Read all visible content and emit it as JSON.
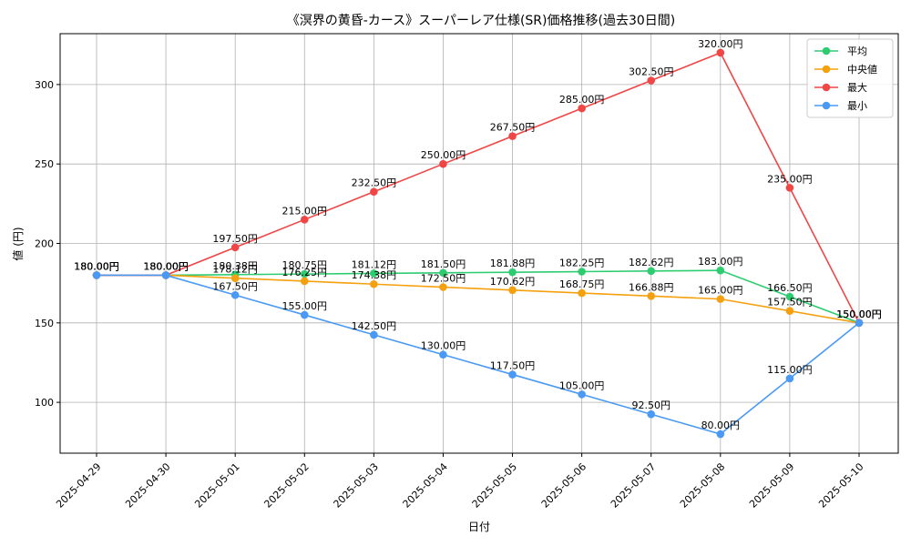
{
  "chart_data": {
    "type": "line",
    "title": "《溟界の黄昏-カース》スーパーレア仕様(SR)価格推移(過去30日間)",
    "xlabel": "日付",
    "ylabel": "値 (円)",
    "x": [
      "2025-04-29",
      "2025-04-30",
      "2025-05-01",
      "2025-05-02",
      "2025-05-03",
      "2025-05-04",
      "2025-05-05",
      "2025-05-06",
      "2025-05-07",
      "2025-05-08",
      "2025-05-09",
      "2025-05-10"
    ],
    "ylim": [
      68,
      332
    ],
    "yticks": [
      100,
      150,
      200,
      250,
      300
    ],
    "grid": true,
    "legend_position": "top-right",
    "series": [
      {
        "name": "平均",
        "color": "#2ecc71",
        "values": [
          180.0,
          180.0,
          180.38,
          180.75,
          181.12,
          181.5,
          181.88,
          182.25,
          182.62,
          183.0,
          166.5,
          150.0
        ],
        "labels": [
          "180.00円",
          "180.00円",
          "180.38円",
          "180.75円",
          "181.12円",
          "181.50円",
          "181.88円",
          "182.25円",
          "182.62円",
          "183.00円",
          "166.50円",
          "150.00円"
        ]
      },
      {
        "name": "中央値",
        "color": "#f5a00f",
        "values": [
          180.0,
          180.0,
          178.12,
          176.25,
          174.38,
          172.5,
          170.62,
          168.75,
          166.88,
          165.0,
          157.5,
          150.0
        ],
        "labels": [
          "180.00円",
          "180.00円",
          "178.12円",
          "176.25円",
          "174.38円",
          "172.50円",
          "170.62円",
          "168.75円",
          "166.88円",
          "165.00円",
          "157.50円",
          "150.00円"
        ]
      },
      {
        "name": "最大",
        "color": "#f04646",
        "values": [
          180.0,
          180.0,
          197.5,
          215.0,
          232.5,
          250.0,
          267.5,
          285.0,
          302.5,
          320.0,
          235.0,
          150.0
        ],
        "labels": [
          "180.00円",
          "180.00円",
          "197.50円",
          "215.00円",
          "232.50円",
          "250.00円",
          "267.50円",
          "285.00円",
          "302.50円",
          "320.00円",
          "235.00円",
          "150.00円"
        ]
      },
      {
        "name": "最小",
        "color": "#4a9af5",
        "values": [
          180.0,
          180.0,
          167.5,
          155.0,
          142.5,
          130.0,
          117.5,
          105.0,
          92.5,
          80.0,
          115.0,
          150.0
        ],
        "labels": [
          "180.00円",
          "180.00円",
          "167.50円",
          "155.00円",
          "142.50円",
          "130.00円",
          "117.50円",
          "105.00円",
          "92.50円",
          "80.00円",
          "115.00円",
          "150.00円"
        ]
      }
    ]
  }
}
